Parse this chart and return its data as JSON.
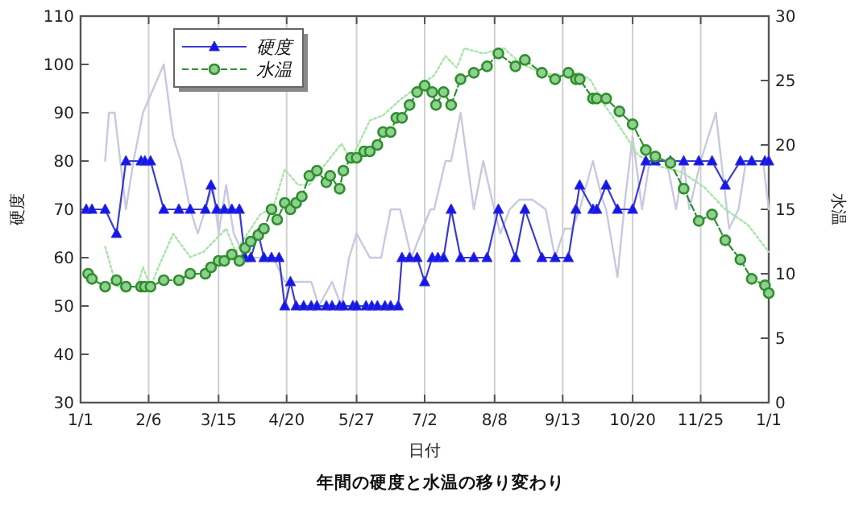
{
  "chart_data": {
    "type": "line",
    "title": "年間の硬度と水温の移り変わり",
    "xlabel": "日付",
    "ylabel": "硬度",
    "y2label": "水温",
    "xlim": [
      "--01-01",
      "--12-31"
    ],
    "xticks": [
      {
        "value": "--01-01",
        "label": "1/1"
      },
      {
        "value": "--02-06",
        "label": "2/6"
      },
      {
        "value": "--03-15",
        "label": "3/15"
      },
      {
        "value": "--04-20",
        "label": "4/20"
      },
      {
        "value": "--05-27",
        "label": "5/27"
      },
      {
        "value": "--07-02",
        "label": "7/2"
      },
      {
        "value": "--08-08",
        "label": "8/8"
      },
      {
        "value": "--09-13",
        "label": "9/13"
      },
      {
        "value": "--10-20",
        "label": "10/20"
      },
      {
        "value": "--11-25",
        "label": "11/25"
      },
      {
        "value": "--12-31",
        "label": "1/1"
      }
    ],
    "ylim": [
      30,
      110
    ],
    "yticks": [
      30,
      40,
      50,
      60,
      70,
      80,
      90,
      100,
      110
    ],
    "y2lim": [
      0,
      30
    ],
    "y2ticks": [
      0,
      5,
      10,
      15,
      20,
      25,
      30
    ],
    "grid": "x",
    "legend": "top left",
    "series": [
      {
        "color": "#c8c8e2",
        "marker": "none",
        "line_style": "solid",
        "x": [
          "--01-14",
          "--01-16",
          "--01-19",
          "--01-25",
          "--01-29",
          "--02-03",
          "--02-14",
          "--02-19",
          "--02-23",
          "--02-28",
          "--03-04",
          "--03-08",
          "--03-12",
          "--03-15",
          "--03-19",
          "--03-23",
          "--03-29",
          "--04-05",
          "--04-13",
          "--04-19",
          "--04-25",
          "--05-03",
          "--05-07",
          "--05-14",
          "--05-19",
          "--05-23",
          "--05-27",
          "--06-03",
          "--06-09",
          "--06-14",
          "--06-19",
          "--06-25",
          "--07-05",
          "--07-07",
          "--07-13",
          "--07-16",
          "--07-21",
          "--07-28",
          "--08-02",
          "--08-06",
          "--08-11",
          "--08-16",
          "--08-21",
          "--08-28",
          "--09-04",
          "--09-09",
          "--09-14",
          "--09-18",
          "--09-22",
          "--09-29",
          "--10-04",
          "--10-06",
          "--10-12",
          "--10-16",
          "--10-20",
          "--10-25",
          "--10-29",
          "--11-07",
          "--11-12",
          "--11-16",
          "--11-19",
          "--11-25",
          "--12-03",
          "--12-10",
          "--12-15",
          "--12-19",
          "--12-28",
          "--12-31"
        ],
        "values": [
          80,
          90,
          90,
          70,
          80,
          90,
          100,
          85,
          80,
          70,
          65,
          70,
          75,
          65,
          75,
          65,
          60,
          60,
          60,
          55,
          55,
          55,
          50,
          55,
          50,
          60,
          65,
          60,
          60,
          70,
          70,
          60,
          70,
          70,
          80,
          80,
          90,
          70,
          80,
          73,
          65,
          70,
          72,
          72,
          70,
          60,
          66,
          66,
          70,
          80,
          72,
          70,
          56,
          72,
          85,
          70,
          80,
          80,
          70,
          80,
          70,
          80,
          90,
          66,
          70,
          80,
          80,
          70
        ]
      },
      {
        "axis": "y2",
        "color": "#a8e4a8",
        "marker": "none",
        "line_style": "dotted",
        "x": [
          "--01-14",
          "--01-20",
          "--01-31",
          "--02-03",
          "--02-07",
          "--02-12",
          "--02-19",
          "--02-28",
          "--03-07",
          "--03-19",
          "--03-24",
          "--04-06",
          "--04-13",
          "--04-19",
          "--04-26",
          "--05-02",
          "--05-12",
          "--05-19",
          "--05-24",
          "--06-03",
          "--06-10",
          "--06-19",
          "--06-29",
          "--07-07",
          "--07-13",
          "--07-19",
          "--07-23",
          "--08-02",
          "--08-13",
          "--08-22",
          "--09-02",
          "--09-11",
          "--09-22",
          "--09-28",
          "--10-04",
          "--10-09",
          "--10-15",
          "--10-23",
          "--11-04",
          "--11-15",
          "--11-27",
          "--12-08",
          "--12-20",
          "--12-31"
        ],
        "values": [
          12.1,
          9,
          9,
          10.5,
          9,
          10.8,
          13.1,
          11.3,
          11.7,
          13.5,
          11.7,
          14.6,
          15.2,
          18.1,
          16.9,
          16.9,
          18.8,
          20.1,
          18.8,
          21.9,
          22.3,
          23.5,
          24.6,
          25.4,
          26.9,
          26,
          27.5,
          27.1,
          27.5,
          26.3,
          25.6,
          25.4,
          25.6,
          25,
          23.3,
          22.3,
          21,
          19.2,
          18.3,
          17.9,
          16.7,
          15,
          13.8,
          11.7
        ]
      },
      {
        "name": "硬度",
        "color": "#3a3ad0",
        "marker": "triangle",
        "line_style": "solid",
        "x": [
          "--01-04",
          "--01-07",
          "--01-14",
          "--01-20",
          "--01-25",
          "--02-02",
          "--02-04",
          "--02-07",
          "--02-14",
          "--02-22",
          "--02-28",
          "--03-08",
          "--03-11",
          "--03-14",
          "--03-18",
          "--03-22",
          "--03-26",
          "--03-29",
          "--04-01",
          "--04-05",
          "--04-08",
          "--04-12",
          "--04-16",
          "--04-19",
          "--04-22",
          "--04-25",
          "--04-29",
          "--05-03",
          "--05-06",
          "--05-11",
          "--05-14",
          "--05-18",
          "--05-20",
          "--05-25",
          "--05-27",
          "--06-01",
          "--06-04",
          "--06-07",
          "--06-11",
          "--06-14",
          "--06-18",
          "--06-20",
          "--06-24",
          "--06-28",
          "--07-02",
          "--07-06",
          "--07-09",
          "--07-12",
          "--07-16",
          "--07-21",
          "--07-28",
          "--08-04",
          "--08-10",
          "--08-19",
          "--08-24",
          "--09-02",
          "--09-09",
          "--09-16",
          "--09-20",
          "--09-22",
          "--09-29",
          "--10-01",
          "--10-06",
          "--10-12",
          "--10-20",
          "--10-27",
          "--11-01",
          "--11-09",
          "--11-16",
          "--11-24",
          "--12-01",
          "--12-08",
          "--12-16",
          "--12-22",
          "--12-29",
          "--12-31"
        ],
        "values": [
          70,
          70,
          70,
          65,
          80,
          80,
          80,
          80,
          70,
          70,
          70,
          70,
          75,
          70,
          70,
          70,
          70,
          60,
          60,
          65,
          60,
          60,
          60,
          50,
          55,
          50,
          50,
          50,
          50,
          50,
          50,
          50,
          50,
          50,
          50,
          50,
          50,
          50,
          50,
          50,
          50,
          60,
          60,
          60,
          55,
          60,
          60,
          60,
          70,
          60,
          60,
          60,
          70,
          60,
          70,
          60,
          60,
          60,
          70,
          75,
          70,
          70,
          75,
          70,
          70,
          80,
          80,
          80,
          80,
          80,
          80,
          75,
          80,
          80,
          80,
          80
        ]
      },
      {
        "name": "水温",
        "axis": "y2",
        "color": "#2e8f2e",
        "marker": "circle",
        "line_style": "dashed",
        "x": [
          "--01-05",
          "--01-07",
          "--01-14",
          "--01-20",
          "--01-25",
          "--02-02",
          "--02-04",
          "--02-07",
          "--02-14",
          "--02-22",
          "--02-28",
          "--03-08",
          "--03-11",
          "--03-15",
          "--03-18",
          "--03-22",
          "--03-26",
          "--03-29",
          "--04-01",
          "--04-05",
          "--04-08",
          "--04-12",
          "--04-15",
          "--04-19",
          "--04-22",
          "--04-25",
          "--04-28",
          "--05-02",
          "--05-06",
          "--05-11",
          "--05-13",
          "--05-18",
          "--05-20",
          "--05-24",
          "--05-27",
          "--05-31",
          "--06-03",
          "--06-07",
          "--06-10",
          "--06-14",
          "--06-17",
          "--06-20",
          "--06-24",
          "--06-28",
          "--07-02",
          "--07-06",
          "--07-08",
          "--07-12",
          "--07-16",
          "--07-21",
          "--07-28",
          "--08-04",
          "--08-10",
          "--08-19",
          "--08-24",
          "--09-02",
          "--09-09",
          "--09-16",
          "--09-20",
          "--09-22",
          "--09-29",
          "--10-01",
          "--10-06",
          "--10-13",
          "--10-20",
          "--10-27",
          "--11-01",
          "--11-09",
          "--11-16",
          "--11-24",
          "--12-01",
          "--12-08",
          "--12-16",
          "--12-22",
          "--12-29",
          "--12-31"
        ],
        "values": [
          10,
          9.6,
          9,
          9.5,
          9,
          9,
          9,
          9,
          9.5,
          9.5,
          10,
          10,
          10.5,
          11,
          11,
          11.5,
          11,
          12,
          12.5,
          13,
          13.5,
          15,
          14.2,
          15.5,
          15,
          15.5,
          16,
          17.6,
          18,
          17.1,
          17.6,
          16.6,
          18,
          19,
          19,
          19.5,
          19.5,
          20,
          21,
          21,
          22.1,
          22.1,
          23.1,
          24.1,
          24.6,
          24.1,
          23.1,
          24.1,
          23.1,
          25.1,
          25.6,
          26.1,
          27.1,
          26.1,
          26.6,
          25.6,
          25.1,
          25.6,
          25.1,
          25.1,
          23.6,
          23.6,
          23.6,
          22.6,
          21.6,
          19.6,
          19.1,
          18.6,
          16.6,
          14.1,
          14.6,
          12.6,
          11.1,
          9.6,
          9.1,
          8.5
        ]
      }
    ]
  }
}
